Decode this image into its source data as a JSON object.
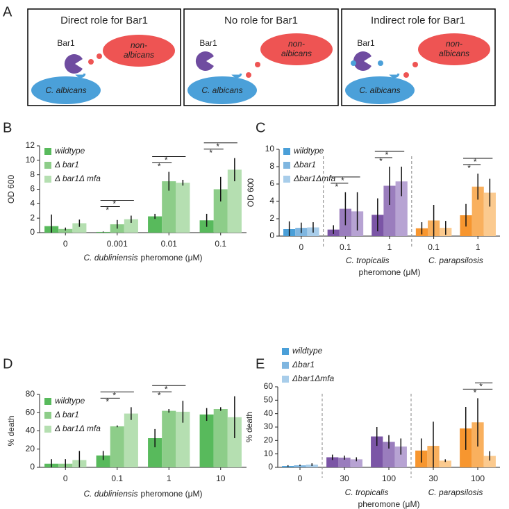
{
  "diagram": {
    "panel": "A",
    "titles": [
      "Direct role for Bar1",
      "No role for Bar1",
      "Indirect role for Bar1"
    ],
    "enzyme": "Bar1",
    "target": [
      "non-",
      "albicans"
    ],
    "host": "C. albicans"
  },
  "chart_data": [
    {
      "type": "bar",
      "panel": "B",
      "ylabel": "OD 600",
      "xlabel_species": "C. dubliniensis",
      "xlabel": "pheromone (μM)",
      "categories": [
        "0",
        "0.001",
        "0.01",
        "0.1"
      ],
      "ylim": [
        0,
        12
      ],
      "yticks": [
        0,
        2,
        4,
        6,
        8,
        10,
        12
      ],
      "legend": "upper left",
      "series": [
        {
          "name": "wildtype",
          "color": "#58ba5c",
          "values": [
            0.9,
            0.1,
            2.25,
            1.7
          ],
          "errors": [
            1.6,
            0.05,
            0.35,
            0.9
          ]
        },
        {
          "name": "Δ bar1",
          "color": "#8dcd89",
          "values": [
            0.5,
            1.15,
            7.1,
            6.0
          ],
          "errors": [
            0.2,
            0.6,
            1.3,
            1.7
          ]
        },
        {
          "name": "Δ bar1Δ mfa",
          "color": "#b5dfb1",
          "values": [
            1.3,
            1.85,
            6.9,
            8.7
          ],
          "errors": [
            0.5,
            0.5,
            0.4,
            1.6
          ]
        }
      ],
      "significance": [
        {
          "category": 1,
          "from": 0,
          "to": 1,
          "label": "*"
        },
        {
          "category": 1,
          "from": 0,
          "to": 2,
          "label": "*"
        },
        {
          "category": 2,
          "from": 0,
          "to": 1,
          "label": "*"
        },
        {
          "category": 2,
          "from": 0,
          "to": 2,
          "label": "*"
        },
        {
          "category": 3,
          "from": 0,
          "to": 1,
          "label": "*"
        },
        {
          "category": 3,
          "from": 0,
          "to": 2,
          "label": "*"
        }
      ]
    },
    {
      "type": "bar",
      "panel": "C",
      "ylabel": "OD 600",
      "xlabel": "pheromone (μM)",
      "categories": [
        "0",
        "0.1",
        "1",
        "0.1",
        "1"
      ],
      "groups": [
        {
          "label": "C. tropicalis",
          "categories": [
            1,
            2
          ]
        },
        {
          "label": "C. parapsilosis",
          "categories": [
            3,
            4
          ]
        }
      ],
      "ylim": [
        0,
        10
      ],
      "yticks": [
        0,
        2,
        4,
        6,
        8,
        10
      ],
      "legend": "upper left",
      "series": [
        {
          "name": "wildtype",
          "color": "#4a9fd8",
          "colors": [
            "#4a9fd8",
            "#7b55a6",
            "#7b55a6",
            "#f7962f",
            "#f7962f"
          ],
          "values": [
            0.8,
            0.75,
            2.45,
            0.9,
            2.4
          ],
          "errors": [
            0.9,
            0.5,
            1.9,
            0.7,
            1.3
          ]
        },
        {
          "name": "Δbar1",
          "color": "#7fb6e0",
          "colors": [
            "#7fb6e0",
            "#9a7dbd",
            "#9a7dbd",
            "#f9b05e",
            "#f9b05e"
          ],
          "values": [
            0.95,
            3.15,
            5.8,
            1.8,
            5.7
          ],
          "errors": [
            0.6,
            1.9,
            2.2,
            1.8,
            1.5
          ]
        },
        {
          "name": "Δbar1Δmfa",
          "color": "#a8cdea",
          "colors": [
            "#a8cdea",
            "#b7a3d3",
            "#b7a3d3",
            "#fbca8f",
            "#fbca8f"
          ],
          "values": [
            1.0,
            2.85,
            6.3,
            0.95,
            5.0
          ],
          "errors": [
            0.6,
            2.2,
            1.7,
            0.8,
            1.6
          ]
        }
      ],
      "significance": [
        {
          "category": 1,
          "from": 0,
          "to": 1,
          "label": "*"
        },
        {
          "category": 1,
          "from": 0,
          "to": 2,
          "label": "*"
        },
        {
          "category": 2,
          "from": 0,
          "to": 1,
          "label": "*"
        },
        {
          "category": 2,
          "from": 0,
          "to": 2,
          "label": "*"
        },
        {
          "category": 4,
          "from": 0,
          "to": 1,
          "label": "*"
        },
        {
          "category": 4,
          "from": 0,
          "to": 2,
          "label": "*"
        }
      ]
    },
    {
      "type": "bar",
      "panel": "D",
      "ylabel": "% death",
      "xlabel_species": "C. dubliniensis",
      "xlabel": "pheromone (μM)",
      "categories": [
        "0",
        "0.1",
        "1",
        "10"
      ],
      "ylim": [
        0,
        80
      ],
      "yticks": [
        0,
        20,
        40,
        60,
        80
      ],
      "legend": "upper left",
      "series": [
        {
          "name": "wildtype",
          "color": "#58ba5c",
          "values": [
            4,
            13,
            32,
            58
          ],
          "errors": [
            5,
            5,
            10,
            7
          ]
        },
        {
          "name": "Δ bar1",
          "color": "#8dcd89",
          "values": [
            4,
            45,
            62,
            64
          ],
          "errors": [
            5,
            1,
            2,
            2
          ]
        },
        {
          "name": "Δ bar1Δ mfa",
          "color": "#b5dfb1",
          "values": [
            8,
            59,
            61,
            55
          ],
          "errors": [
            10,
            7,
            12,
            23
          ]
        }
      ],
      "significance": [
        {
          "category": 1,
          "from": 0,
          "to": 1,
          "label": "*"
        },
        {
          "category": 1,
          "from": 0,
          "to": 2,
          "label": "*"
        },
        {
          "category": 2,
          "from": 0,
          "to": 1,
          "label": "*"
        },
        {
          "category": 2,
          "from": 0,
          "to": 2,
          "label": "*"
        }
      ]
    },
    {
      "type": "bar",
      "panel": "E",
      "ylabel": "% death",
      "xlabel": "pheromone (μM)",
      "categories": [
        "0",
        "30",
        "100",
        "30",
        "100"
      ],
      "groups": [
        {
          "label": "C. tropicalis",
          "categories": [
            1,
            2
          ]
        },
        {
          "label": "C. parapsilosis",
          "categories": [
            3,
            4
          ]
        }
      ],
      "ylim": [
        0,
        60
      ],
      "yticks": [
        0,
        10,
        20,
        30,
        40,
        50,
        60
      ],
      "legend": "upper left",
      "series": [
        {
          "name": "wildtype",
          "color": "#4a9fd8",
          "colors": [
            "#4a9fd8",
            "#7b55a6",
            "#7b55a6",
            "#f7962f",
            "#f7962f"
          ],
          "values": [
            1,
            7.5,
            23,
            12.5,
            29
          ],
          "errors": [
            0.6,
            2,
            7,
            9,
            16
          ]
        },
        {
          "name": "Δbar1",
          "color": "#7fb6e0",
          "colors": [
            "#7fb6e0",
            "#9a7dbd",
            "#9a7dbd",
            "#f9b05e",
            "#f9b05e"
          ],
          "values": [
            1.5,
            7.2,
            19,
            16,
            33.5
          ],
          "errors": [
            0.5,
            1.5,
            5,
            18,
            18
          ]
        },
        {
          "name": "Δbar1Δmfa",
          "color": "#a8cdea",
          "colors": [
            "#a8cdea",
            "#b7a3d3",
            "#b7a3d3",
            "#fbca8f",
            "#fbca8f"
          ],
          "values": [
            2,
            6,
            15.5,
            5,
            8.5
          ],
          "errors": [
            1,
            1.5,
            6,
            1,
            3.5
          ]
        }
      ],
      "significance": [
        {
          "category": 4,
          "from": 0,
          "to": 2,
          "label": "*"
        },
        {
          "category": 4,
          "from": 1,
          "to": 2,
          "label": "*"
        }
      ]
    }
  ]
}
